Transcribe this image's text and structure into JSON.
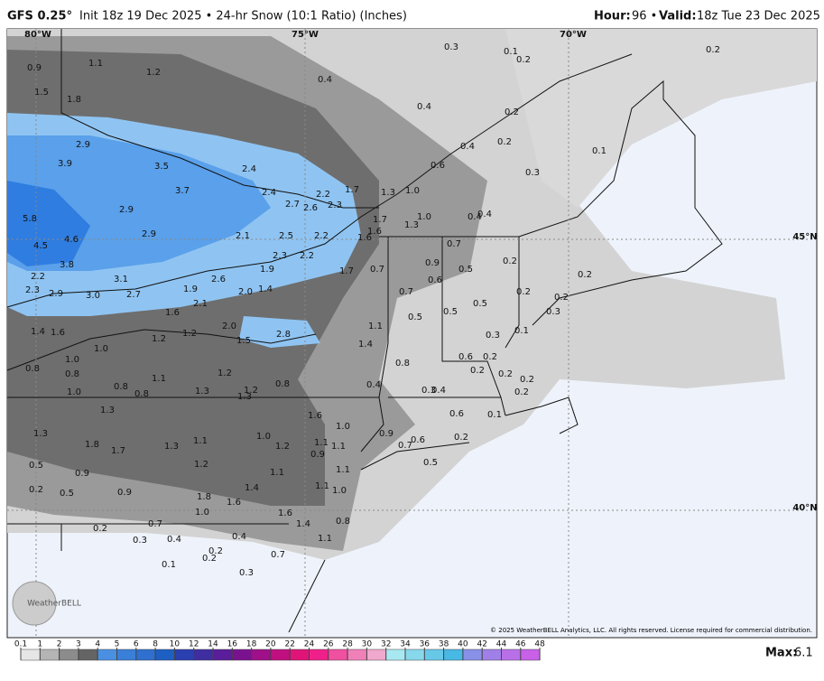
{
  "header": {
    "model": "GFS 0.25°",
    "init": "Init 18z 19 Dec 2025 • 24-hr Snow (10:1 Ratio) (Inches)",
    "hour_label": "Hour:",
    "hour": "96 •",
    "valid_label": "Valid:",
    "valid": "18z Tue 23 Dec 2025"
  },
  "grid_labels": [
    "80°W",
    "75°W",
    "70°W",
    "45°N",
    "40°N"
  ],
  "map_labels": [
    "0.9",
    "1.1",
    "1.2",
    "0.4",
    "0.3",
    "0.1",
    "0.2",
    "0.2",
    "1.5",
    "1.8",
    "0.4",
    "0.2",
    "2.9",
    "0.4",
    "0.2",
    "0.1",
    "3.9",
    "3.5",
    "2.4",
    "0.6",
    "0.3",
    "3.7",
    "2.4",
    "1.7",
    "2.2",
    "1.3",
    "1.0",
    "2.9",
    "2.7",
    "2.6",
    "2.3",
    "1.7",
    "1.0",
    "0.4",
    "0.4",
    "5.8",
    "1.3",
    "2.9",
    "2.1",
    "2.5",
    "2.2",
    "1.6",
    "1.6",
    "4.5",
    "4.6",
    "0.7",
    "2.3",
    "2.2",
    "3.8",
    "0.7",
    "0.9",
    "0.2",
    "0.5",
    "1.7",
    "2.2",
    "3.1",
    "2.6",
    "1.9",
    "0.6",
    "0.2",
    "2.3",
    "2.9",
    "3.0",
    "2.7",
    "1.9",
    "2.0",
    "1.4",
    "0.7",
    "0.2",
    "0.2",
    "2.1",
    "0.5",
    "0.3",
    "1.6",
    "0.5",
    "0.5",
    "1.4",
    "1.6",
    "2.0",
    "1.1",
    "0.1",
    "1.2",
    "1.2",
    "1.5",
    "2.8",
    "0.3",
    "1.4",
    "1.0",
    "1.0",
    "0.6",
    "0.2",
    "0.8",
    "0.8",
    "0.8",
    "1.2",
    "1.1",
    "0.2",
    "0.2",
    "0.2",
    "1.0",
    "0.8",
    "0.8",
    "1.3",
    "1.2",
    "1.3",
    "0.8",
    "0.4",
    "0.3",
    "0.4",
    "0.2",
    "1.3",
    "1.6",
    "0.6",
    "0.1",
    "1.0",
    "1.3",
    "1.1",
    "1.0",
    "0.9",
    "0.6",
    "0.2",
    "1.8",
    "1.7",
    "1.3",
    "1.2",
    "1.1",
    "1.1",
    "0.7",
    "0.9",
    "0.5",
    "0.9",
    "1.2",
    "1.1",
    "1.1",
    "0.5",
    "0.2",
    "0.5",
    "0.9",
    "1.4",
    "1.1",
    "1.0",
    "1.8",
    "1.6",
    "1.6",
    "1.0",
    "1.4",
    "0.8",
    "0.7",
    "0.2",
    "0.3",
    "0.4",
    "0.2",
    "0.4",
    "1.1",
    "0.7",
    "0.1",
    "0.2",
    "0.3"
  ],
  "colorbar": {
    "ticks": [
      0.1,
      1,
      2,
      3,
      4,
      5,
      6,
      8,
      10,
      12,
      14,
      16,
      18,
      20,
      22,
      24,
      26,
      28,
      30,
      32,
      34,
      36,
      38,
      40,
      42,
      44,
      46,
      48
    ]
  },
  "max_label": "Max:",
  "max": 6.1,
  "copyright": "© 2025 WeatherBELL Analytics, LLC. All rights reserved. License required for commercial distribution.",
  "logo": "WeatherBELL"
}
